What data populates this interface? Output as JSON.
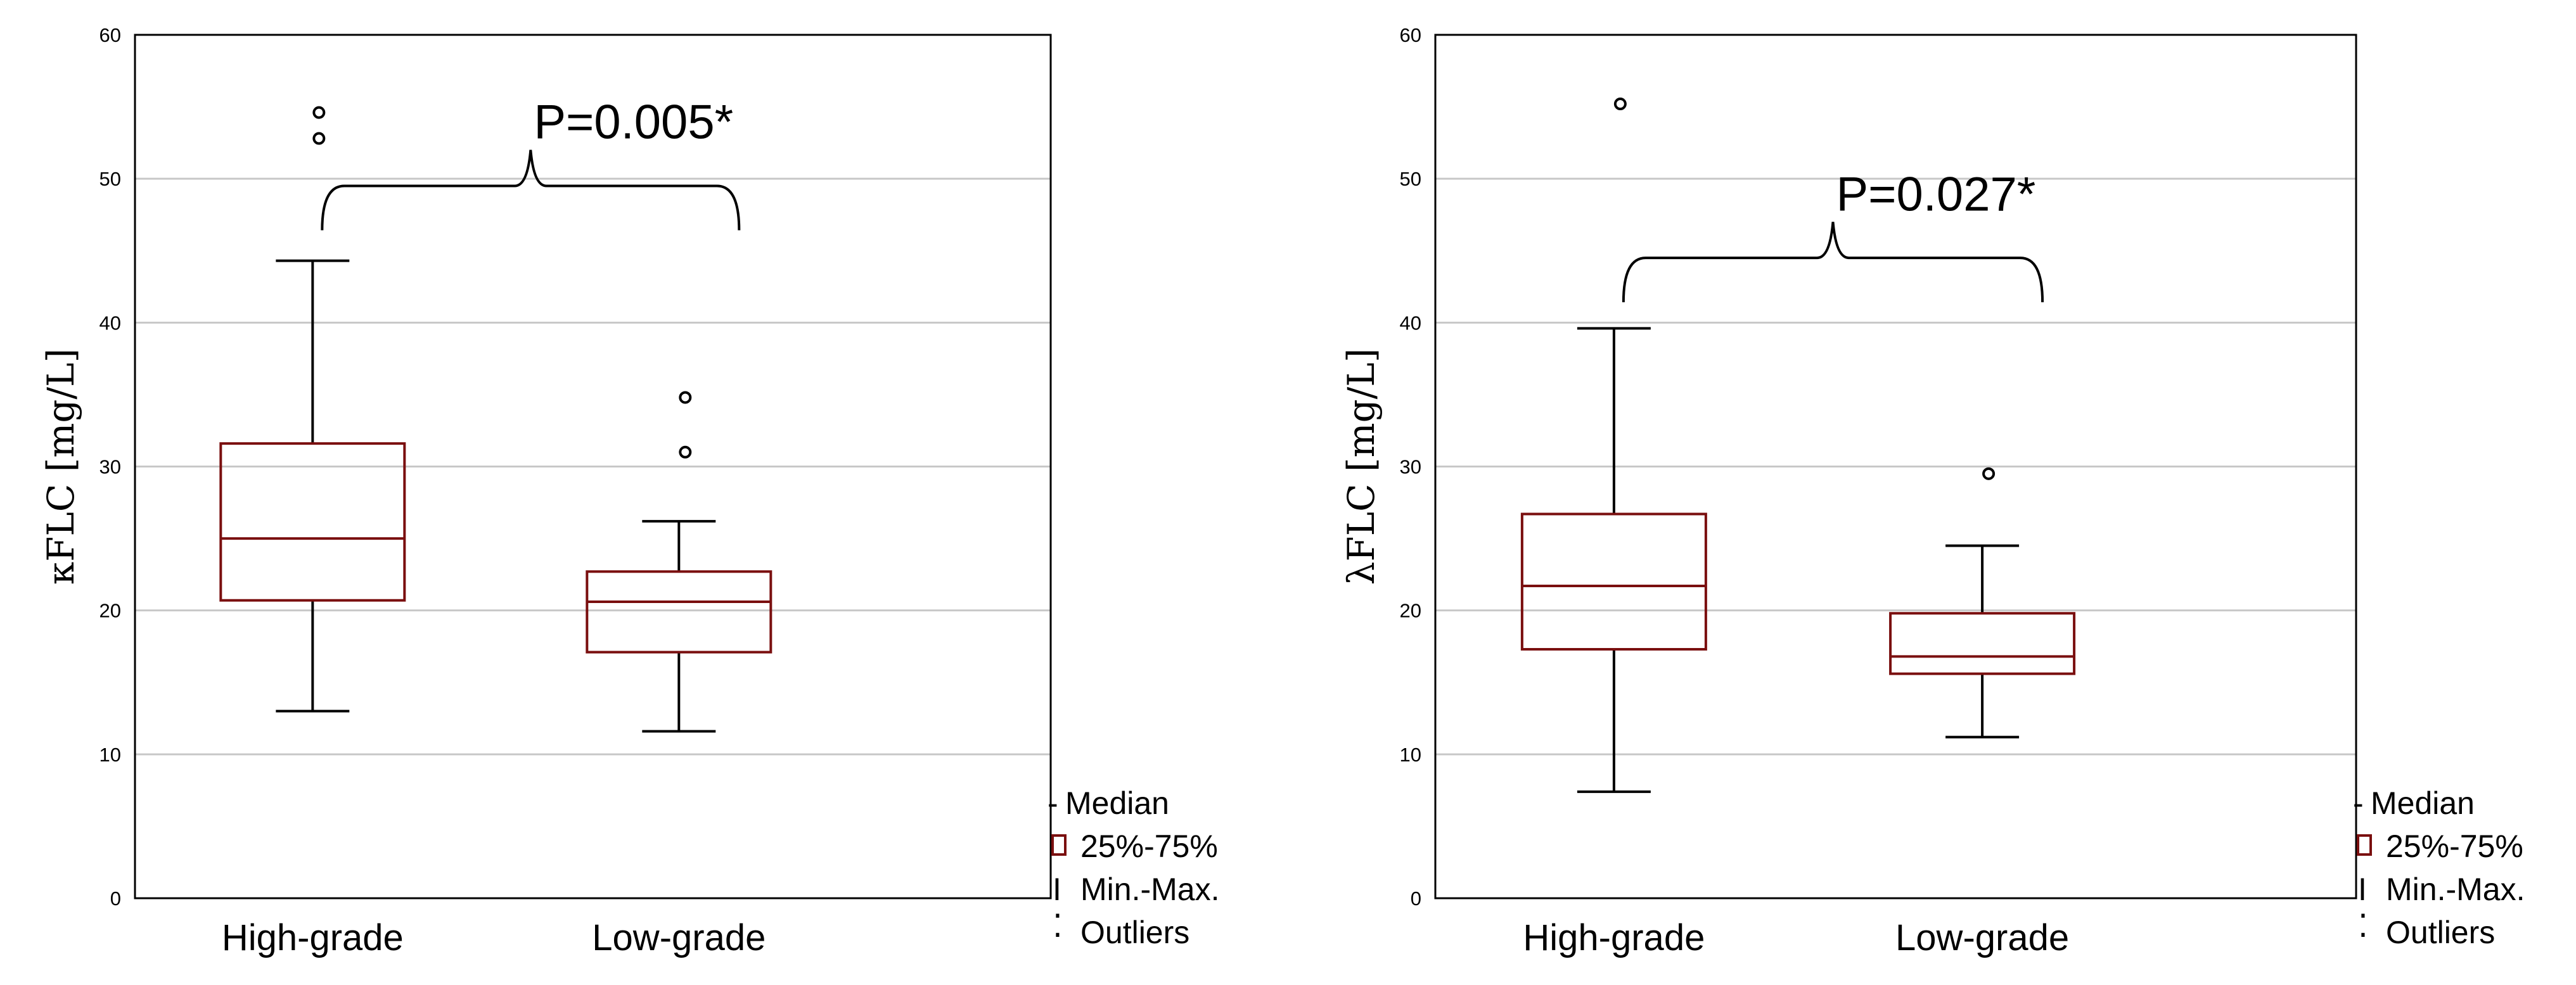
{
  "chart_data": [
    {
      "type": "boxplot",
      "ylabel": "κFLC [mg/L]",
      "xlabel": "",
      "ylim": [
        0,
        60
      ],
      "yticks": [
        "0",
        "10",
        "20",
        "30",
        "40",
        "50",
        "60"
      ],
      "grid": true,
      "categories": [
        "High-grade",
        "Low-grade"
      ],
      "boxes": [
        {
          "category": "High-grade",
          "min": 13,
          "q1": 20.7,
          "median": 25,
          "q3": 31.6,
          "max": 44.3,
          "outliers": [
            54.6,
            52.8
          ]
        },
        {
          "category": "Low-grade",
          "min": 11.6,
          "q1": 17.1,
          "median": 20.6,
          "q3": 22.7,
          "max": 26.2,
          "outliers": [
            34.8,
            31
          ]
        }
      ],
      "annotation": {
        "text": "P=0.005*",
        "brace_y": 49.5,
        "brace_tip": 52
      },
      "legend": {
        "position": "bottom-right",
        "items": [
          "Median",
          "25%-75%",
          "Min.-Max.",
          "Outliers"
        ]
      }
    },
    {
      "type": "boxplot",
      "ylabel": "λFLC [mg/L]",
      "xlabel": "",
      "ylim": [
        0,
        60
      ],
      "yticks": [
        "0",
        "10",
        "20",
        "30",
        "40",
        "50",
        "60"
      ],
      "grid": true,
      "categories": [
        "High-grade",
        "Low-grade"
      ],
      "boxes": [
        {
          "category": "High-grade",
          "min": 7.4,
          "q1": 17.3,
          "median": 21.7,
          "q3": 26.7,
          "max": 39.6,
          "outliers": [
            55.2
          ]
        },
        {
          "category": "Low-grade",
          "min": 11.2,
          "q1": 15.6,
          "median": 16.8,
          "q3": 19.8,
          "max": 24.5,
          "outliers": [
            29.5
          ]
        }
      ],
      "annotation": {
        "text": "P=0.027*",
        "brace_y": 44.5,
        "brace_tip": 47
      },
      "legend": {
        "position": "bottom-right",
        "items": [
          "Median",
          "25%-75%",
          "Min.-Max.",
          "Outliers"
        ]
      }
    }
  ],
  "legend_glyphs": {
    "median": "-",
    "range": "I",
    "outliers": "⁚"
  },
  "colors": {
    "box": "#7a0f0f",
    "whisker": "#000000",
    "grid": "#c8c8c8"
  }
}
